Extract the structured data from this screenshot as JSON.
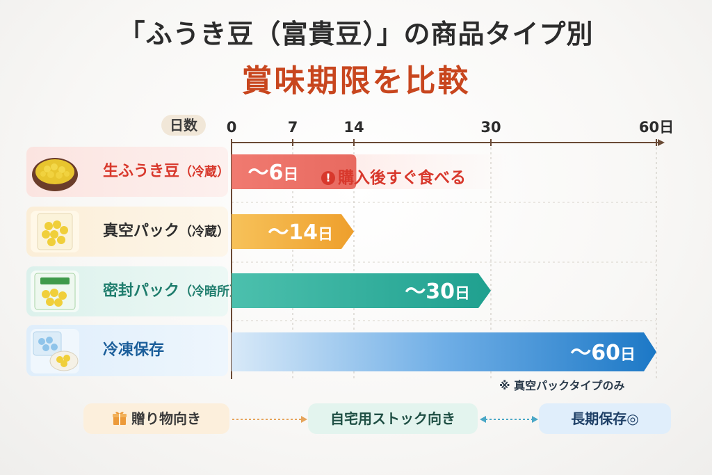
{
  "title_line1": "「ふうき豆（富貴豆）」の商品タイプ別",
  "title_line2": "賞味期限を比較",
  "axis_label": "日数",
  "rows": [
    {
      "label": "生ふうき豆",
      "sub": "（冷蔵）",
      "bar_text": "～6日"
    },
    {
      "label": "真空パック",
      "sub": "（冷蔵）",
      "bar_text": "～14日"
    },
    {
      "label": "密封パック",
      "sub": "（冷暗所）",
      "bar_text": "～30日"
    },
    {
      "label": "冷凍保存",
      "sub": "",
      "bar_text": "～60日"
    }
  ],
  "warning": "購入後すぐ食べる",
  "note": "※ 真空パックタイプのみ",
  "bottom": {
    "gift": "贈り物向き",
    "stock": "自宅用ストック向き",
    "long": "長期保存◎"
  },
  "colors": {
    "title_accent": "#c8461e",
    "raw": "#e8685f",
    "vacuum": "#f0ad3b",
    "sealed": "#2aaa9a",
    "frozen": "#2c86cf"
  },
  "chart_data": {
    "type": "bar",
    "orientation": "horizontal",
    "categories": [
      "生ふうき豆（冷蔵）",
      "真空パック（冷蔵）",
      "密封パック（冷暗所）",
      "冷凍保存"
    ],
    "values": [
      6,
      14,
      30,
      60
    ],
    "xlabel": "日数",
    "xticks": [
      "0",
      "7",
      "14",
      "30",
      "60日"
    ],
    "xtick_values": [
      0,
      7,
      14,
      30,
      60
    ],
    "xlim": [
      0,
      60
    ],
    "grid": true,
    "title": "「ふうき豆（富貴豆）」の商品タイプ別 賞味期限を比較"
  }
}
